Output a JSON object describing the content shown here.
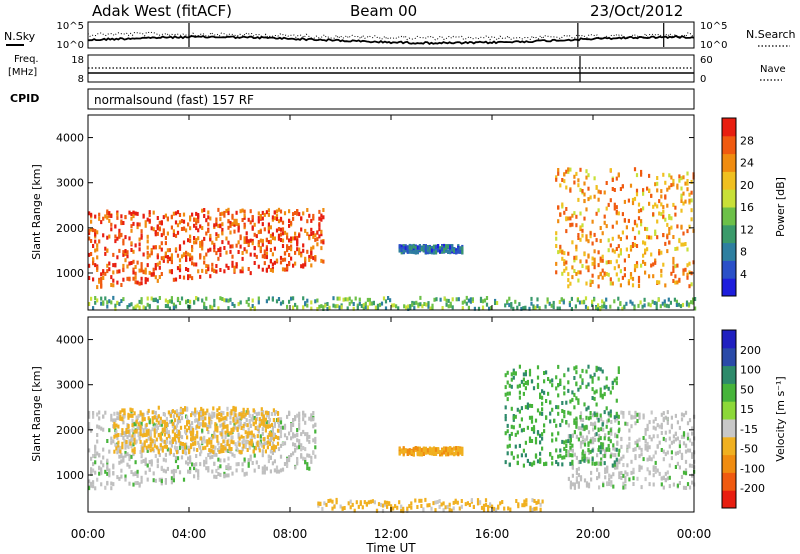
{
  "header": {
    "station": "Adak West (fitACF)",
    "beam": "Beam 00",
    "date": "23/Oct/2012"
  },
  "noise_panel": {
    "left_label": "N.Sky",
    "right_label": "N.Search",
    "left_ticks": [
      "10^5",
      "10^0"
    ],
    "right_ticks": [
      "10^5",
      "10^0"
    ]
  },
  "freq_panel": {
    "left_label_1": "Freq.",
    "left_label_2": "[MHz]",
    "right_label": "Nave",
    "left_ticks": [
      "18",
      "8"
    ],
    "right_ticks": [
      "60",
      "0"
    ]
  },
  "cpid": {
    "label": "CPID",
    "text": "normalsound (fast) 157 RF"
  },
  "colors": {
    "power_scale": [
      "#1e1edc",
      "#2a50c8",
      "#2e7fa0",
      "#3a9a6a",
      "#6cc048",
      "#c8e038",
      "#f0c020",
      "#f08c10",
      "#f05a10",
      "#e81e10"
    ],
    "velocity_scale": [
      "#2020c0",
      "#2a4aa8",
      "#2d8a6a",
      "#46b43a",
      "#8cd838",
      "#c8c8c8",
      "#f0b020",
      "#f08c10",
      "#f05a10",
      "#e81e10"
    ],
    "ground_scatter": "#bfbfbf"
  },
  "chart_data": [
    {
      "type": "heatmap",
      "panel": "power",
      "xlabel": "",
      "ylabel": "Slant Range [km]",
      "xlim_hours": [
        0,
        24
      ],
      "ylim_km": [
        180,
        4500
      ],
      "yticks": [
        1000,
        2000,
        3000,
        4000
      ],
      "colorbar": {
        "label": "Power [dB]",
        "ticks": [
          4,
          8,
          12,
          16,
          20,
          24,
          28
        ],
        "range": [
          0,
          30
        ]
      },
      "features": [
        {
          "name": "morning E/F band",
          "t_start_h": 0.0,
          "t_end_h": 9.3,
          "range_km": [
            650,
            2400
          ],
          "power_db": 26
        },
        {
          "name": "evening band",
          "t_start_h": 18.5,
          "t_end_h": 24.0,
          "range_km": [
            700,
            3300
          ],
          "power_db": 22
        },
        {
          "name": "midday patch",
          "t_start_h": 12.3,
          "t_end_h": 14.8,
          "range_km": [
            1450,
            1600
          ],
          "power_db": 7
        },
        {
          "name": "near range noise",
          "t_start_h": 0.0,
          "t_end_h": 24.0,
          "range_km": [
            200,
            450
          ],
          "power_db": 12
        }
      ]
    },
    {
      "type": "heatmap",
      "panel": "velocity",
      "xlabel": "Time UT",
      "ylabel": "Slant Range [km]",
      "xlim_hours": [
        0,
        24
      ],
      "ylim_km": [
        180,
        4500
      ],
      "xticks": [
        "00:00",
        "04:00",
        "08:00",
        "12:00",
        "16:00",
        "20:00",
        "00:00"
      ],
      "yticks": [
        1000,
        2000,
        3000,
        4000
      ],
      "colorbar": {
        "label": "Velocity [m s⁻¹]",
        "ticks": [
          200,
          100,
          50,
          15,
          -15,
          -50,
          -100,
          -200
        ],
        "range": [
          -250,
          250
        ]
      },
      "features": [
        {
          "name": "morning ground scatter",
          "t_start_h": 0.0,
          "t_end_h": 9.0,
          "range_km": [
            650,
            2400
          ],
          "velocity_ms": 0
        },
        {
          "name": "morning streaks",
          "t_start_h": 1.0,
          "t_end_h": 7.5,
          "range_km": [
            1500,
            2500
          ],
          "velocity_ms": -60
        },
        {
          "name": "evening ground scatter",
          "t_start_h": 19.0,
          "t_end_h": 24.0,
          "range_km": [
            700,
            2400
          ],
          "velocity_ms": 0
        },
        {
          "name": "evening ionospheric",
          "t_start_h": 16.5,
          "t_end_h": 21.0,
          "range_km": [
            1200,
            3400
          ],
          "velocity_ms": 40
        },
        {
          "name": "midday patch",
          "t_start_h": 12.3,
          "t_end_h": 14.8,
          "range_km": [
            1450,
            1600
          ],
          "velocity_ms": -90
        },
        {
          "name": "near range",
          "t_start_h": 9.0,
          "t_end_h": 18.0,
          "range_km": [
            200,
            450
          ],
          "velocity_ms": -60
        }
      ]
    }
  ]
}
